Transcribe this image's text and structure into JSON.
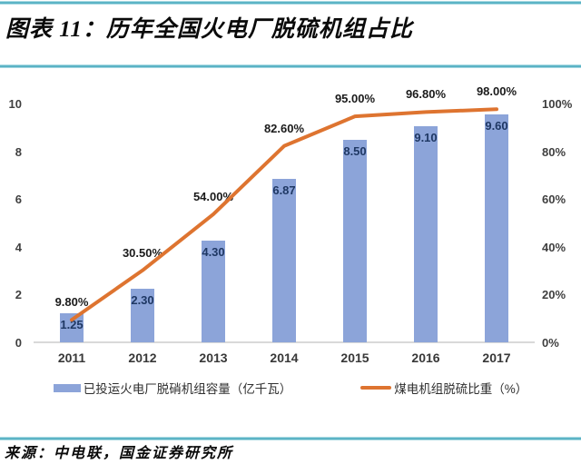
{
  "page": {
    "title": "图表 11：历年全国火电厂脱硫机组占比",
    "source": "来源：中电联，国金证券研究所",
    "accent_rule_color": "#58b2c4"
  },
  "chart_data": {
    "type": "bar",
    "subtype": "bar+line combo, dual axis",
    "title": "历年全国火电厂脱硫机组占比",
    "categories": [
      "2011",
      "2012",
      "2013",
      "2014",
      "2015",
      "2016",
      "2017"
    ],
    "series": [
      {
        "name": "已投运火电厂脱硝机组容量（亿千瓦）",
        "type": "bar",
        "axis": "left",
        "color": "#8ca4d9",
        "label_color": "#1f3864",
        "values": [
          1.25,
          2.3,
          4.3,
          6.87,
          8.5,
          9.1,
          9.6
        ],
        "labels": [
          "1.25",
          "2.30",
          "4.30",
          "6.87",
          "8.50",
          "9.10",
          "9.60"
        ]
      },
      {
        "name": "煤电机组脱硫比重（%）",
        "type": "line",
        "axis": "right",
        "color": "#de7430",
        "label_color": "#1a1a1a",
        "values": [
          9.8,
          30.5,
          54.0,
          82.6,
          95.0,
          96.8,
          98.0
        ],
        "labels": [
          "9.80%",
          "30.50%",
          "54.00%",
          "82.60%",
          "95.00%",
          "96.80%",
          "98.00%"
        ]
      }
    ],
    "left_axis": {
      "min": 0,
      "max": 10,
      "ticks": [
        "0",
        "2",
        "4",
        "6",
        "8",
        "10"
      ]
    },
    "right_axis": {
      "min": 0,
      "max": 100,
      "ticks": [
        "0%",
        "20%",
        "40%",
        "60%",
        "80%",
        "100%"
      ]
    },
    "grid": false,
    "legend_position": "bottom"
  }
}
